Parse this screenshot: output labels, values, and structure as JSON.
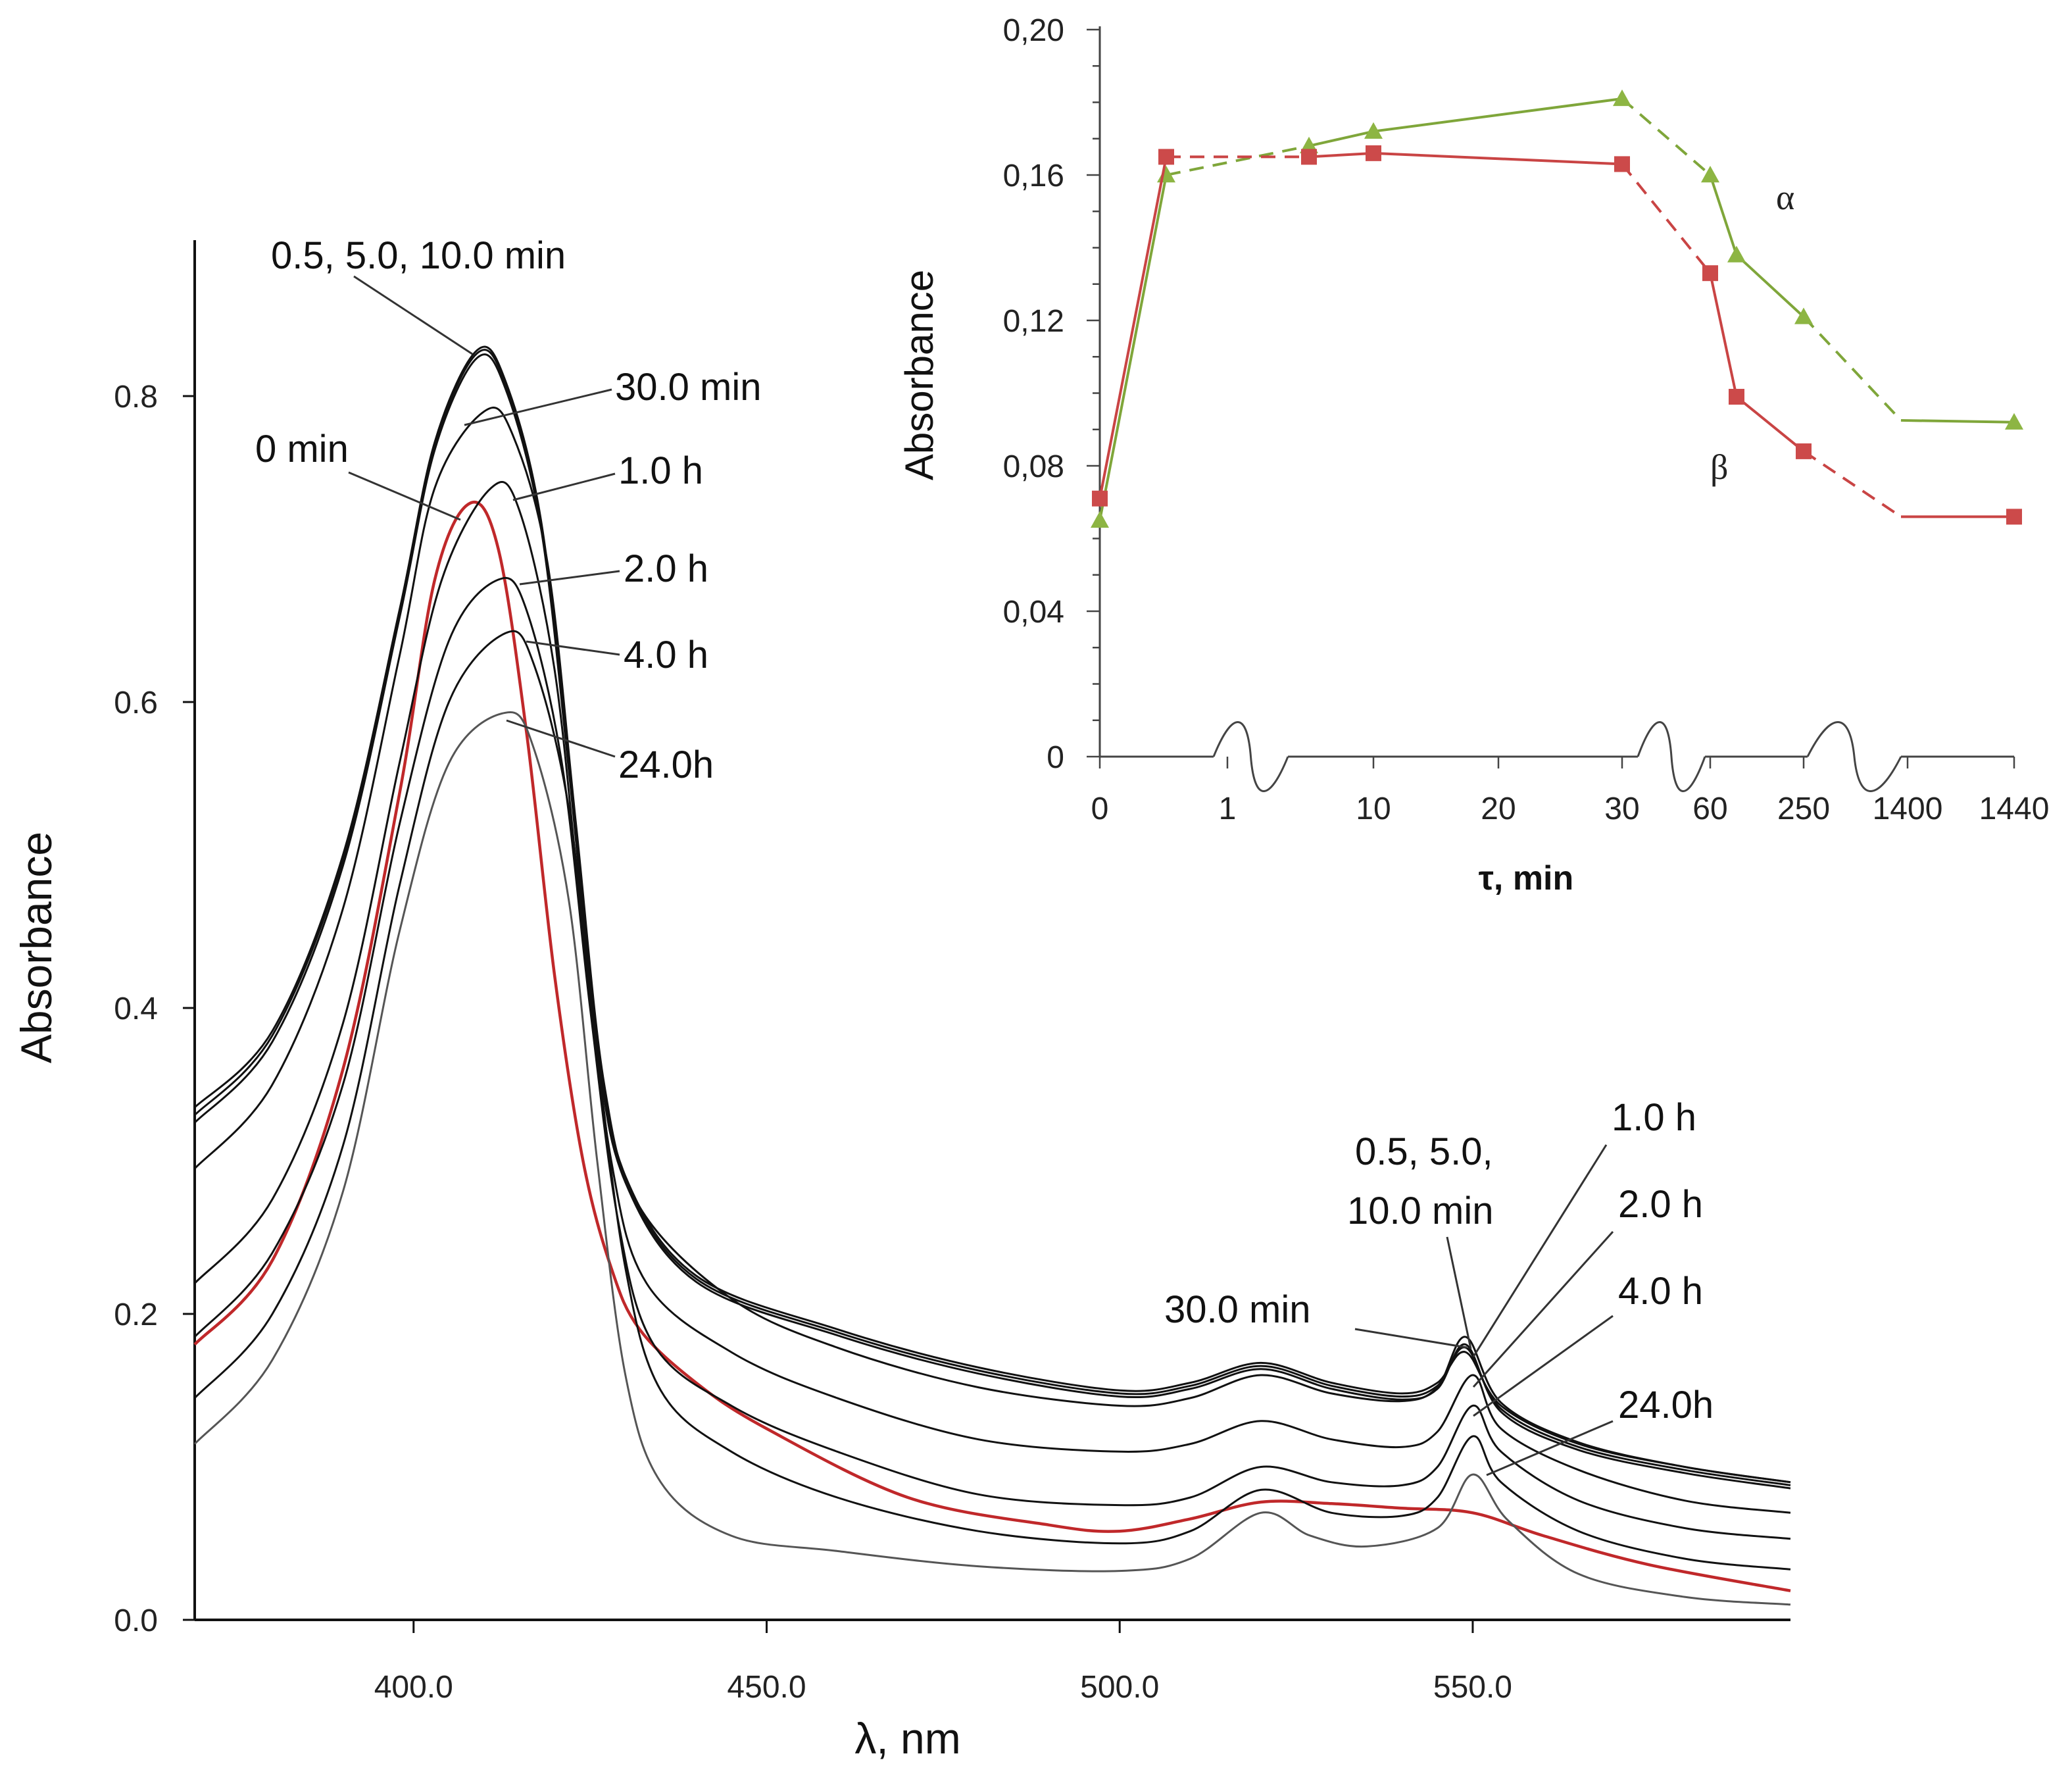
{
  "chart_data": [
    {
      "type": "line",
      "title": "",
      "xlabel": "λ, nm",
      "ylabel": "Absorbance",
      "xlim": [
        369,
        595
      ],
      "ylim": [
        0,
        0.9
      ],
      "x_ticks": [
        400.0,
        450.0,
        500.0,
        550.0
      ],
      "x_tick_labels": [
        "400.0",
        "450.0",
        "500.0",
        "550.0"
      ],
      "y_ticks": [
        0.0,
        0.2,
        0.4,
        0.6,
        0.8
      ],
      "y_tick_labels": [
        "0.0",
        "0.2",
        "0.4",
        "0.6",
        "0.8"
      ],
      "series": [
        {
          "name": "0 min",
          "color": "#c0282a",
          "values": [
            [
              369,
              0.18
            ],
            [
              380,
              0.235
            ],
            [
              390,
              0.36
            ],
            [
              398,
              0.54
            ],
            [
              403,
              0.68
            ],
            [
              408,
              0.73
            ],
            [
              412,
              0.7
            ],
            [
              416,
              0.58
            ],
            [
              420,
              0.42
            ],
            [
              424,
              0.3
            ],
            [
              428,
              0.23
            ],
            [
              432,
              0.19
            ],
            [
              440,
              0.155
            ],
            [
              450,
              0.125
            ],
            [
              470,
              0.08
            ],
            [
              490,
              0.062
            ],
            [
              500,
              0.058
            ],
            [
              510,
              0.066
            ],
            [
              520,
              0.077
            ],
            [
              530,
              0.076
            ],
            [
              540,
              0.073
            ],
            [
              550,
              0.07
            ],
            [
              560,
              0.055
            ],
            [
              575,
              0.036
            ],
            [
              595,
              0.019
            ]
          ]
        },
        {
          "name": "0.5 min",
          "color": "#111111",
          "values": [
            [
              369,
              0.335
            ],
            [
              380,
              0.385
            ],
            [
              390,
              0.5
            ],
            [
              398,
              0.66
            ],
            [
              403,
              0.77
            ],
            [
              409,
              0.83
            ],
            [
              413,
              0.81
            ],
            [
              418,
              0.72
            ],
            [
              422,
              0.56
            ],
            [
              426,
              0.38
            ],
            [
              430,
              0.29
            ],
            [
              440,
              0.225
            ],
            [
              460,
              0.19
            ],
            [
              480,
              0.165
            ],
            [
              500,
              0.15
            ],
            [
              510,
              0.155
            ],
            [
              520,
              0.168
            ],
            [
              530,
              0.155
            ],
            [
              540,
              0.148
            ],
            [
              545,
              0.155
            ],
            [
              549,
              0.175
            ],
            [
              554,
              0.14
            ],
            [
              565,
              0.115
            ],
            [
              580,
              0.1
            ],
            [
              595,
              0.09
            ]
          ]
        },
        {
          "name": "5.0 min",
          "color": "#111111",
          "values": [
            [
              369,
              0.33
            ],
            [
              380,
              0.382
            ],
            [
              390,
              0.497
            ],
            [
              398,
              0.658
            ],
            [
              403,
              0.768
            ],
            [
              409,
              0.828
            ],
            [
              413,
              0.808
            ],
            [
              418,
              0.718
            ],
            [
              422,
              0.558
            ],
            [
              426,
              0.378
            ],
            [
              430,
              0.288
            ],
            [
              440,
              0.223
            ],
            [
              460,
              0.188
            ],
            [
              480,
              0.163
            ],
            [
              500,
              0.148
            ],
            [
              510,
              0.153
            ],
            [
              520,
              0.166
            ],
            [
              530,
              0.153
            ],
            [
              540,
              0.146
            ],
            [
              545,
              0.153
            ],
            [
              549,
              0.178
            ],
            [
              554,
              0.138
            ],
            [
              565,
              0.113
            ],
            [
              580,
              0.098
            ],
            [
              595,
              0.088
            ]
          ]
        },
        {
          "name": "10.0 min",
          "color": "#111111",
          "values": [
            [
              369,
              0.325
            ],
            [
              380,
              0.378
            ],
            [
              390,
              0.493
            ],
            [
              398,
              0.655
            ],
            [
              403,
              0.765
            ],
            [
              409,
              0.825
            ],
            [
              413,
              0.805
            ],
            [
              418,
              0.715
            ],
            [
              422,
              0.555
            ],
            [
              426,
              0.375
            ],
            [
              430,
              0.286
            ],
            [
              440,
              0.221
            ],
            [
              460,
              0.186
            ],
            [
              480,
              0.161
            ],
            [
              500,
              0.146
            ],
            [
              510,
              0.151
            ],
            [
              520,
              0.164
            ],
            [
              530,
              0.151
            ],
            [
              540,
              0.144
            ],
            [
              545,
              0.151
            ],
            [
              549,
              0.18
            ],
            [
              554,
              0.136
            ],
            [
              565,
              0.111
            ],
            [
              580,
              0.096
            ],
            [
              595,
              0.086
            ]
          ]
        },
        {
          "name": "30.0 min",
          "color": "#111111",
          "values": [
            [
              369,
              0.295
            ],
            [
              380,
              0.35
            ],
            [
              390,
              0.465
            ],
            [
              398,
              0.63
            ],
            [
              403,
              0.74
            ],
            [
              410,
              0.79
            ],
            [
              414,
              0.775
            ],
            [
              419,
              0.69
            ],
            [
              423,
              0.52
            ],
            [
              427,
              0.35
            ],
            [
              432,
              0.27
            ],
            [
              445,
              0.21
            ],
            [
              460,
              0.178
            ],
            [
              480,
              0.152
            ],
            [
              500,
              0.14
            ],
            [
              510,
              0.145
            ],
            [
              520,
              0.16
            ],
            [
              530,
              0.148
            ],
            [
              540,
              0.143
            ],
            [
              545,
              0.152
            ],
            [
              549,
              0.185
            ],
            [
              554,
              0.142
            ],
            [
              565,
              0.116
            ],
            [
              580,
              0.1
            ],
            [
              595,
              0.09
            ]
          ]
        },
        {
          "name": "1.0 h",
          "color": "#111111",
          "values": [
            [
              369,
              0.22
            ],
            [
              380,
              0.275
            ],
            [
              390,
              0.39
            ],
            [
              398,
              0.56
            ],
            [
              404,
              0.68
            ],
            [
              411,
              0.74
            ],
            [
              415,
              0.725
            ],
            [
              420,
              0.62
            ],
            [
              424,
              0.45
            ],
            [
              428,
              0.3
            ],
            [
              433,
              0.22
            ],
            [
              445,
              0.175
            ],
            [
              460,
              0.145
            ],
            [
              480,
              0.118
            ],
            [
              500,
              0.11
            ],
            [
              510,
              0.115
            ],
            [
              520,
              0.13
            ],
            [
              530,
              0.118
            ],
            [
              540,
              0.113
            ],
            [
              545,
              0.123
            ],
            [
              550,
              0.16
            ],
            [
              554,
              0.125
            ],
            [
              565,
              0.098
            ],
            [
              580,
              0.078
            ],
            [
              595,
              0.07
            ]
          ]
        },
        {
          "name": "2.0 h",
          "color": "#111111",
          "values": [
            [
              369,
              0.185
            ],
            [
              380,
              0.24
            ],
            [
              390,
              0.35
            ],
            [
              398,
              0.52
            ],
            [
              405,
              0.64
            ],
            [
              412,
              0.68
            ],
            [
              416,
              0.66
            ],
            [
              421,
              0.56
            ],
            [
              425,
              0.4
            ],
            [
              429,
              0.26
            ],
            [
              434,
              0.18
            ],
            [
              445,
              0.14
            ],
            [
              460,
              0.11
            ],
            [
              480,
              0.082
            ],
            [
              500,
              0.075
            ],
            [
              510,
              0.08
            ],
            [
              520,
              0.1
            ],
            [
              530,
              0.09
            ],
            [
              540,
              0.088
            ],
            [
              545,
              0.1
            ],
            [
              550,
              0.14
            ],
            [
              554,
              0.11
            ],
            [
              565,
              0.078
            ],
            [
              580,
              0.06
            ],
            [
              595,
              0.053
            ]
          ]
        },
        {
          "name": "4.0 h",
          "color": "#111111",
          "values": [
            [
              369,
              0.145
            ],
            [
              380,
              0.2
            ],
            [
              390,
              0.31
            ],
            [
              398,
              0.48
            ],
            [
              405,
              0.6
            ],
            [
              413,
              0.645
            ],
            [
              417,
              0.625
            ],
            [
              422,
              0.53
            ],
            [
              426,
              0.37
            ],
            [
              430,
              0.23
            ],
            [
              435,
              0.15
            ],
            [
              445,
              0.11
            ],
            [
              460,
              0.08
            ],
            [
              480,
              0.058
            ],
            [
              500,
              0.05
            ],
            [
              510,
              0.058
            ],
            [
              520,
              0.085
            ],
            [
              530,
              0.07
            ],
            [
              540,
              0.068
            ],
            [
              545,
              0.08
            ],
            [
              550,
              0.12
            ],
            [
              554,
              0.09
            ],
            [
              565,
              0.058
            ],
            [
              580,
              0.04
            ],
            [
              595,
              0.033
            ]
          ]
        },
        {
          "name": "24.0h",
          "color": "#555555",
          "values": [
            [
              369,
              0.115
            ],
            [
              380,
              0.17
            ],
            [
              390,
              0.28
            ],
            [
              398,
              0.45
            ],
            [
              405,
              0.56
            ],
            [
              413,
              0.593
            ],
            [
              417,
              0.57
            ],
            [
              422,
              0.47
            ],
            [
              426,
              0.3
            ],
            [
              430,
              0.16
            ],
            [
              435,
              0.09
            ],
            [
              445,
              0.055
            ],
            [
              460,
              0.045
            ],
            [
              480,
              0.035
            ],
            [
              500,
              0.032
            ],
            [
              510,
              0.04
            ],
            [
              520,
              0.07
            ],
            [
              527,
              0.055
            ],
            [
              535,
              0.048
            ],
            [
              545,
              0.06
            ],
            [
              550,
              0.095
            ],
            [
              555,
              0.065
            ],
            [
              565,
              0.03
            ],
            [
              580,
              0.015
            ],
            [
              595,
              0.01
            ]
          ]
        }
      ],
      "annotations": {
        "peak_labels": [
          "0.5, 5.0, 10.0 min",
          "30.0 min",
          "0 min",
          "1.0 h",
          "2.0 h",
          "4.0 h",
          "24.0h"
        ],
        "q_band_labels": [
          "0.5, 5.0,",
          "10.0 min",
          "1.0 h",
          "2.0 h",
          "4.0 h",
          "30.0 min",
          "24.0h"
        ]
      }
    },
    {
      "type": "line",
      "title": "",
      "xlabel": "τ, min",
      "ylabel": "Absorbance",
      "ylim": [
        0,
        0.2
      ],
      "x_categories": [
        "0",
        "1",
        "10",
        "20",
        "30",
        "60",
        "250",
        "1400",
        "1440"
      ],
      "y_ticks": [
        0,
        0.04,
        0.08,
        0.12,
        0.16,
        0.2
      ],
      "y_tick_labels": [
        "0",
        "0,04",
        "0,08",
        "0,12",
        "0,16",
        "0,20"
      ],
      "series": [
        {
          "name": "α",
          "color": "#7fa63a",
          "marker": "triangle",
          "points": [
            {
              "t": 0,
              "value": 0.065
            },
            {
              "t": 0.5,
              "value": 0.16
            },
            {
              "t": 5.0,
              "value": 0.168
            },
            {
              "t": 10.0,
              "value": 0.172
            },
            {
              "t": 30.0,
              "value": 0.181
            },
            {
              "t": 60,
              "value": 0.16
            },
            {
              "t": 120,
              "value": 0.138
            },
            {
              "t": 240,
              "value": 0.121
            },
            {
              "t": 1440,
              "value": 0.092
            }
          ]
        },
        {
          "name": "β",
          "color": "#c94444",
          "marker": "square",
          "points": [
            {
              "t": 0,
              "value": 0.071
            },
            {
              "t": 0.5,
              "value": 0.165
            },
            {
              "t": 5.0,
              "value": 0.165
            },
            {
              "t": 10.0,
              "value": 0.166
            },
            {
              "t": 30.0,
              "value": 0.163
            },
            {
              "t": 60,
              "value": 0.133
            },
            {
              "t": 120,
              "value": 0.099
            },
            {
              "t": 240,
              "value": 0.084
            },
            {
              "t": 1440,
              "value": 0.066
            }
          ]
        }
      ]
    }
  ]
}
